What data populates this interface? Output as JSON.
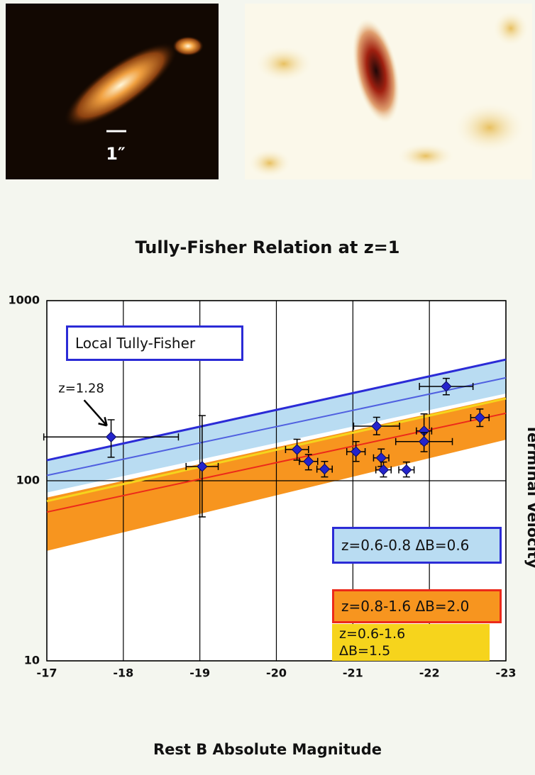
{
  "image_panels": {
    "scale_label": "1″"
  },
  "chart_data": {
    "type": "scatter",
    "title": "Tully-Fisher Relation at z=1",
    "x_label": "Rest B Absolute Magnitude",
    "y_label": "Terminal Velocity",
    "xlim": [
      -17,
      -23
    ],
    "xticks": [
      -17,
      -18,
      -19,
      -20,
      -21,
      -22,
      -23
    ],
    "ylim": [
      10,
      1000
    ],
    "yticks": [
      10,
      100,
      1000
    ],
    "y_scale": "log",
    "grid": true,
    "annotation": "z=1.28",
    "series": [
      {
        "name": "Local Tully-Fisher",
        "kind": "line",
        "color": "#2b2bd6",
        "legend_fill": "#ffffff",
        "legend_border": "#2b2bd6",
        "x": [
          -17,
          -23
        ],
        "values": [
          130,
          471
        ]
      },
      {
        "name": "z=0.6-0.8 ΔB=0.6",
        "kind": "band",
        "color": "#b9dcf2",
        "line_color": "#5060e0",
        "legend_fill": "#b9dcf2",
        "legend_border": "#2b2bd6",
        "x": [
          -17,
          -23
        ],
        "lower": [
          86,
          305
        ],
        "upper": [
          130,
          471
        ],
        "values": [
          107,
          373
        ]
      },
      {
        "name": "z=0.8-1.6 ΔB=2.0",
        "kind": "band",
        "color": "#f7951f",
        "line_color": "#ec2a1a",
        "legend_fill": "#f7951f",
        "legend_border": "#ec2a1a",
        "x": [
          -17,
          -23
        ],
        "lower": [
          40.8,
          169
        ],
        "upper": [
          80.6,
          292
        ],
        "values": [
          67,
          237
        ]
      },
      {
        "name": "z=0.6-1.6\nΔB=1.5",
        "kind": "line",
        "color": "#f6d41c",
        "legend_fill": "#f6d41c",
        "legend_border": null,
        "x": [
          -17,
          -23
        ],
        "values": [
          77,
          286
        ]
      }
    ],
    "points": {
      "color": "#2424cc",
      "x": [
        -17.84,
        -19.03,
        -20.27,
        -20.42,
        -20.63,
        -21.04,
        -21.31,
        -21.37,
        -21.4,
        -21.7,
        -21.93,
        -21.93,
        -22.22,
        -22.66
      ],
      "values": [
        175,
        120,
        149,
        128,
        116,
        145,
        201,
        134,
        115,
        115,
        189,
        165,
        334,
        224
      ],
      "x_err": [
        0.88,
        0.21,
        0.15,
        0.12,
        0.1,
        0.12,
        0.3,
        0.1,
        0.1,
        0.1,
        0.1,
        0.37,
        0.35,
        0.12
      ],
      "y_lower": [
        135,
        63,
        130,
        115,
        105,
        128,
        180,
        120,
        105,
        105,
        160,
        145,
        300,
        200
      ],
      "y_upper": [
        218,
        230,
        170,
        140,
        128,
        165,
        225,
        150,
        127,
        127,
        235,
        185,
        370,
        250
      ]
    }
  }
}
